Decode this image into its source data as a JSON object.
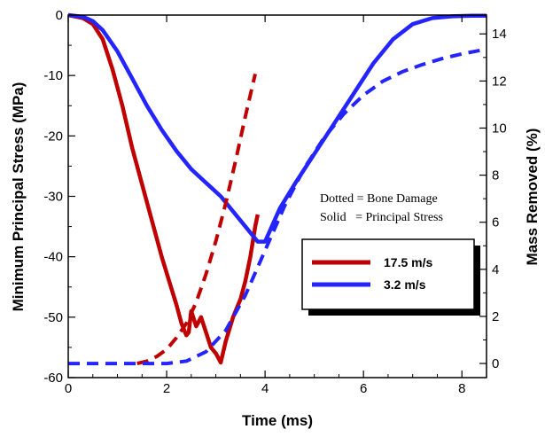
{
  "chart_data": {
    "type": "line",
    "title": "",
    "xlabel": "Time (ms)",
    "ylabel_left": "Minimum Principal Stress (MPa)",
    "ylabel_right": "Mass Removed (%)",
    "xlim": [
      0,
      8.5
    ],
    "ylim_left": [
      -60,
      0
    ],
    "ylim_right": [
      -0.6,
      14.8
    ],
    "x_ticks": [
      "0",
      "2",
      "4",
      "6",
      "8"
    ],
    "y_left_ticks": [
      "0",
      "-10",
      "-20",
      "-30",
      "-40",
      "-50",
      "-60"
    ],
    "y_right_ticks": [
      "0",
      "2",
      "4",
      "6",
      "8",
      "10",
      "12",
      "14"
    ],
    "grid": false,
    "legend_position": "center-right",
    "colors": {
      "red": "#c00000",
      "blue": "#2424ff"
    },
    "series": [
      {
        "name": "17.5 m/s",
        "quantity": "Minimum Principal Stress",
        "axis": "left",
        "style": "solid",
        "color": "#c00000",
        "x": [
          0,
          0.3,
          0.5,
          0.7,
          0.9,
          1.1,
          1.3,
          1.5,
          1.7,
          1.9,
          2.05,
          2.2,
          2.3,
          2.4,
          2.45,
          2.5,
          2.6,
          2.7,
          2.8,
          2.9,
          3.0,
          3.1,
          3.2,
          3.35,
          3.5,
          3.6,
          3.7,
          3.8,
          3.85
        ],
        "y": [
          0,
          -0.5,
          -1.5,
          -4,
          -9,
          -15,
          -22,
          -28,
          -34,
          -40,
          -44,
          -48,
          -51,
          -53,
          -52.5,
          -49,
          -51.5,
          -50,
          -52.5,
          -55,
          -56,
          -57.5,
          -54,
          -50,
          -47,
          -44,
          -40,
          -35,
          -33
        ]
      },
      {
        "name": "3.2 m/s",
        "quantity": "Minimum Principal Stress",
        "axis": "left",
        "style": "solid",
        "color": "#2424ff",
        "x": [
          0,
          0.3,
          0.5,
          0.7,
          1.0,
          1.3,
          1.6,
          1.9,
          2.2,
          2.5,
          2.7,
          2.9,
          3.1,
          3.3,
          3.5,
          3.7,
          3.85,
          4.0,
          4.3,
          4.6,
          5.0,
          5.4,
          5.8,
          6.2,
          6.6,
          7.0,
          7.4,
          7.8,
          8.2,
          8.5
        ],
        "y": [
          0,
          -0.3,
          -1,
          -2.5,
          -6,
          -10.5,
          -15,
          -19,
          -22.5,
          -25.5,
          -27,
          -28.5,
          -30,
          -32,
          -34,
          -36,
          -37.5,
          -37.5,
          -32,
          -28,
          -23,
          -18,
          -13,
          -8,
          -4,
          -1.5,
          -0.5,
          -0.2,
          -0.1,
          -0.1
        ]
      },
      {
        "name": "17.5 m/s",
        "quantity": "Mass Removed (Bone Damage)",
        "axis": "right",
        "style": "dotted",
        "color": "#c00000",
        "x": [
          1.4,
          1.6,
          1.8,
          2.0,
          2.2,
          2.4,
          2.6,
          2.8,
          3.0,
          3.2,
          3.4,
          3.6,
          3.8
        ],
        "y": [
          0,
          0.1,
          0.3,
          0.6,
          1.1,
          1.7,
          2.6,
          3.8,
          5.2,
          6.8,
          8.6,
          10.5,
          12.3
        ]
      },
      {
        "name": "3.2 m/s",
        "quantity": "Mass Removed (Bone Damage)",
        "axis": "right",
        "style": "dotted",
        "color": "#2424ff",
        "x": [
          0,
          2.0,
          2.4,
          2.8,
          3.2,
          3.6,
          4.0,
          4.4,
          4.8,
          5.2,
          5.6,
          6.0,
          6.4,
          6.8,
          7.2,
          7.6,
          8.0,
          8.5
        ],
        "y": [
          0,
          0,
          0.1,
          0.5,
          1.4,
          2.9,
          4.8,
          6.7,
          8.3,
          9.6,
          10.6,
          11.4,
          12.0,
          12.4,
          12.7,
          12.95,
          13.15,
          13.35
        ]
      }
    ],
    "annotations": [
      "Dotted = Bone Damage",
      "Solid   = Principal Stress"
    ],
    "legend": {
      "entries": [
        {
          "label": "17.5 m/s",
          "color": "#c00000"
        },
        {
          "label": "3.2 m/s",
          "color": "#2424ff"
        }
      ]
    }
  }
}
